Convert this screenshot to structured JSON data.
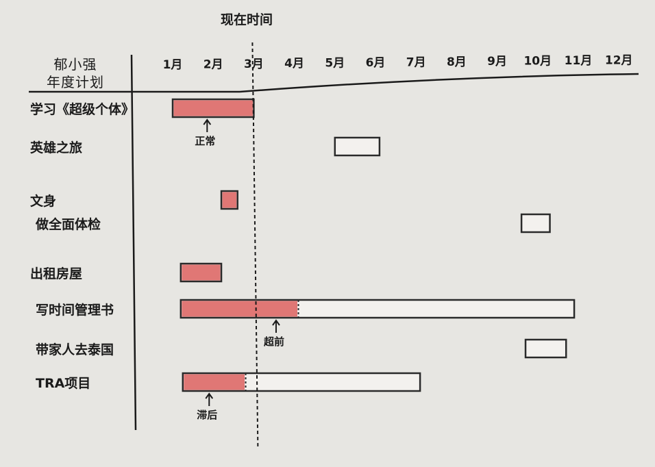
{
  "header": {
    "owner_line1": "郁小强",
    "owner_line2": "年度计划",
    "now_label": "现在时间"
  },
  "months": [
    "1月",
    "2月",
    "3月",
    "4月",
    "5月",
    "6月",
    "7月",
    "8月",
    "9月",
    "10月",
    "11月",
    "12月"
  ],
  "now_month": 3,
  "tasks": [
    {
      "label": "学习《超级个体》",
      "start": 1,
      "end": 3,
      "done_until": 3
    },
    {
      "label": "英雄之旅",
      "start": 5,
      "end": 6.1,
      "done_until": null
    },
    {
      "label": "文身",
      "start": 2.2,
      "end": 2.6,
      "done_until": 2.6
    },
    {
      "label": "做全面体检",
      "start": 9.6,
      "end": 10.3,
      "done_until": null
    },
    {
      "label": "出租房屋",
      "start": 1.2,
      "end": 2.2,
      "done_until": 2.2
    },
    {
      "label": "写时间管理书",
      "start": 1.2,
      "end": 10.9,
      "done_until": 4.1
    },
    {
      "label": "带家人去泰国",
      "start": 9.7,
      "end": 10.7,
      "done_until": null
    },
    {
      "label": "TRA项目",
      "start": 1.25,
      "end": 7.1,
      "done_until": 2.8
    }
  ],
  "annotations": [
    {
      "text": "正常",
      "task_index": 0,
      "month": 1.85
    },
    {
      "text": "超前",
      "task_index": 5,
      "month": 3.55
    },
    {
      "text": "滞后",
      "task_index": 7,
      "month": 1.9
    }
  ],
  "colors": {
    "done_fill": "#e07775",
    "outline": "#2a2a2a",
    "empty_fill": "#f3f1ee"
  }
}
